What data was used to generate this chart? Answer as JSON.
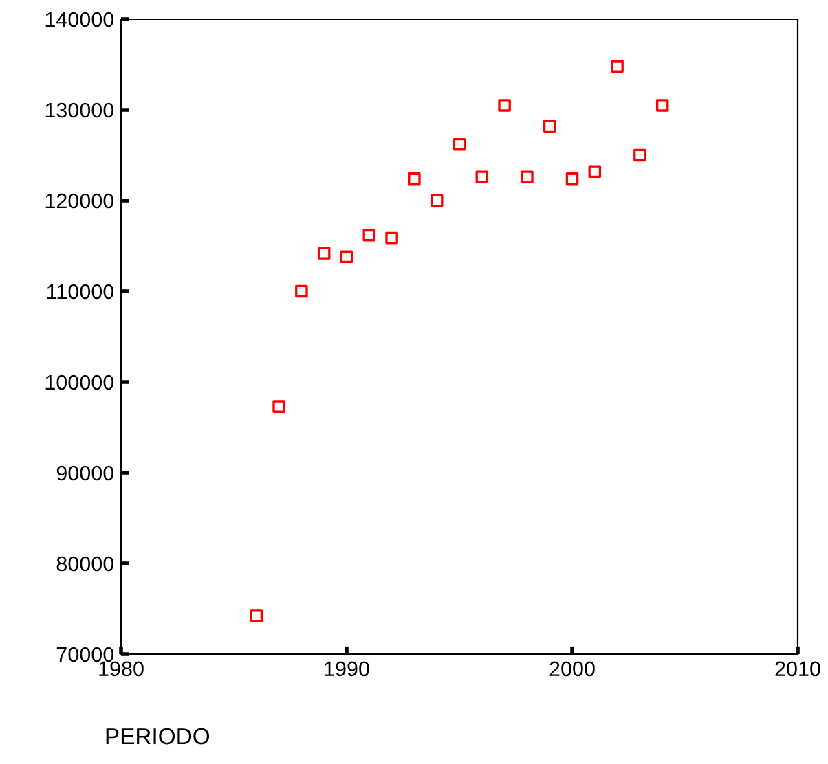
{
  "chart_data": {
    "type": "scatter",
    "xlabel": "PERIODO",
    "x": [
      1986,
      1987,
      1988,
      1989,
      1990,
      1991,
      1992,
      1993,
      1994,
      1995,
      1996,
      1997,
      1998,
      1999,
      2000,
      2001,
      2002,
      2003,
      2004
    ],
    "series": [
      {
        "color": "#ff0000",
        "values": [
          74200,
          97300,
          110000,
          114200,
          113800,
          116200,
          115900,
          122400,
          120000,
          126200,
          122600,
          130500,
          122600,
          128200,
          122400,
          123200,
          134800,
          125000,
          130500
        ]
      }
    ],
    "xlim": [
      1980,
      2010
    ],
    "xticks": [
      1980,
      1990,
      2000,
      2010
    ],
    "ylim": [
      70000,
      140000
    ],
    "yticks": [
      70000,
      80000,
      90000,
      100000,
      110000,
      120000,
      130000,
      140000
    ],
    "marker": "square",
    "grid": false,
    "legend": false
  }
}
